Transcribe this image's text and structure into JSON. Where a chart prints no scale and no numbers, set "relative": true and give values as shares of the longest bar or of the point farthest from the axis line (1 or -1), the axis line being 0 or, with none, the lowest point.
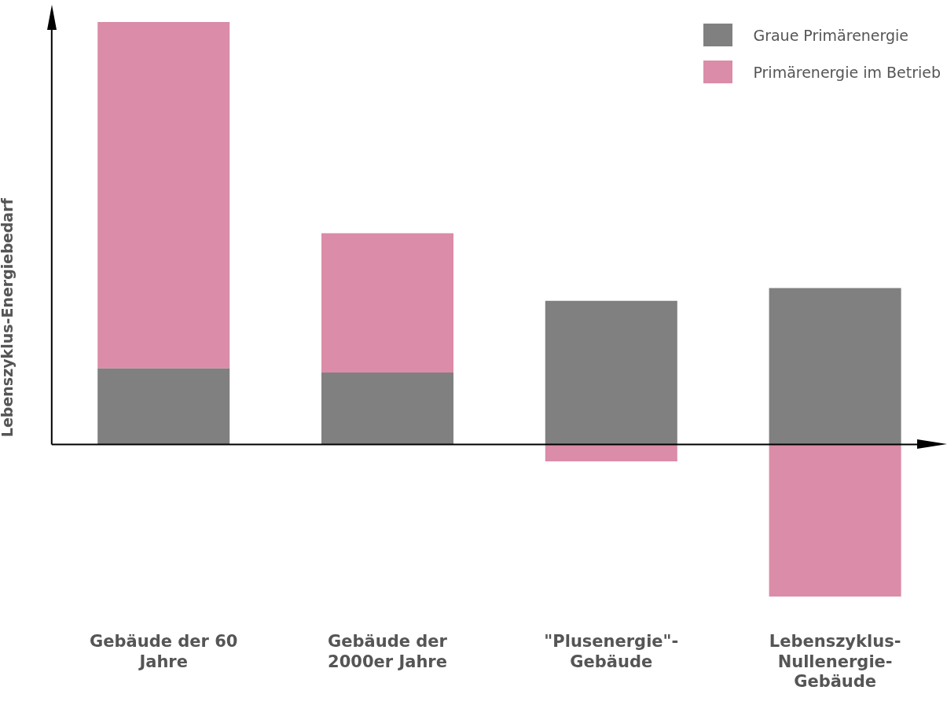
{
  "chart_data": {
    "type": "bar",
    "relative": true,
    "stacked": true,
    "ylabel": "Lebenszyklus-Energiebedarf",
    "categories": [
      "Gebäude der 60 Jahre",
      "Gebäude der 2000er Jahre",
      "\"Plusenergie\"-Gebäude",
      "Lebenszyklus-Nullenergie-Gebäude"
    ],
    "series": [
      {
        "name": "Graue Primärenergie",
        "color": "#808080",
        "values": [
          0.18,
          0.17,
          0.34,
          0.37
        ]
      },
      {
        "name": "Primärenergie im Betrieb",
        "color": "#da8ca8",
        "values": [
          0.82,
          0.33,
          -0.04,
          -0.36
        ]
      }
    ],
    "legend": "top right",
    "grid": false
  }
}
